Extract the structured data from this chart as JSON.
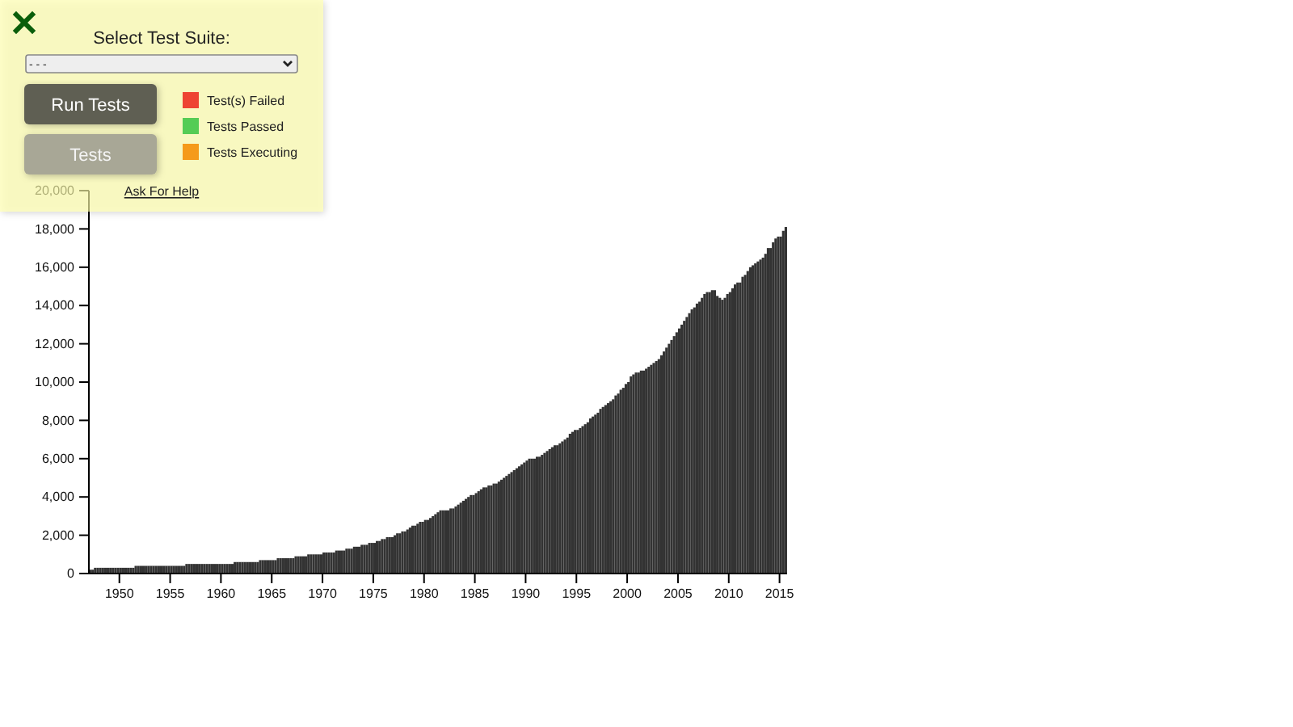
{
  "chart_data": {
    "type": "bar",
    "color": "#333333",
    "annotations": [
      "Select Test Suite:",
      "- - -",
      "Run Tests",
      "Tests",
      "Test(s) Failed",
      "Tests Passed",
      "Tests Executing",
      "Ask For Help"
    ],
    "xlim": [
      "1947-01",
      "2015-10"
    ],
    "xticks": [
      "1950",
      "1955",
      "1960",
      "1965",
      "1970",
      "1975",
      "1980",
      "1985",
      "1990",
      "1995",
      "2000",
      "2005",
      "2010",
      "2015"
    ],
    "ylim": [
      0,
      20000
    ],
    "yticks": [
      0,
      {
        "value": 2000,
        "label": "2,000"
      },
      {
        "value": 4000,
        "label": "4,000"
      },
      {
        "value": 6000,
        "label": "6,000"
      },
      {
        "value": 8000,
        "label": "8,000"
      },
      {
        "value": 10000,
        "label": "10,000"
      },
      {
        "value": 12000,
        "label": "12,000"
      },
      {
        "value": 14000,
        "label": "14,000"
      },
      {
        "value": 16000,
        "label": "16,000"
      },
      {
        "value": 18000,
        "label": "18,000"
      },
      {
        "value": 20000,
        "label": "20,000"
      }
    ],
    "x": [
      "1947-01",
      "1947-04",
      "1947-07",
      "1947-10",
      "1948-01",
      "1948-04",
      "1948-07",
      "1948-10",
      "1949-01",
      "1949-04",
      "1949-07",
      "1949-10",
      "1950-01",
      "1950-04",
      "1950-07",
      "1950-10",
      "1951-01",
      "1951-04",
      "1951-07",
      "1951-10",
      "1952-01",
      "1952-04",
      "1952-07",
      "1952-10",
      "1953-01",
      "1953-04",
      "1953-07",
      "1953-10",
      "1954-01",
      "1954-04",
      "1954-07",
      "1954-10",
      "1955-01",
      "1955-04",
      "1955-07",
      "1955-10",
      "1956-01",
      "1956-04",
      "1956-07",
      "1956-10",
      "1957-01",
      "1957-04",
      "1957-07",
      "1957-10",
      "1958-01",
      "1958-04",
      "1958-07",
      "1958-10",
      "1959-01",
      "1959-04",
      "1959-07",
      "1959-10",
      "1960-01",
      "1960-04",
      "1960-07",
      "1960-10",
      "1961-01",
      "1961-04",
      "1961-07",
      "1961-10",
      "1962-01",
      "1962-04",
      "1962-07",
      "1962-10",
      "1963-01",
      "1963-04",
      "1963-07",
      "1963-10",
      "1964-01",
      "1964-04",
      "1964-07",
      "1964-10",
      "1965-01",
      "1965-04",
      "1965-07",
      "1965-10",
      "1966-01",
      "1966-04",
      "1966-07",
      "1966-10",
      "1967-01",
      "1967-04",
      "1967-07",
      "1967-10",
      "1968-01",
      "1968-04",
      "1968-07",
      "1968-10",
      "1969-01",
      "1969-04",
      "1969-07",
      "1969-10",
      "1970-01",
      "1970-04",
      "1970-07",
      "1970-10",
      "1971-01",
      "1971-04",
      "1971-07",
      "1971-10",
      "1972-01",
      "1972-04",
      "1972-07",
      "1972-10",
      "1973-01",
      "1973-04",
      "1973-07",
      "1973-10",
      "1974-01",
      "1974-04",
      "1974-07",
      "1974-10",
      "1975-01",
      "1975-04",
      "1975-07",
      "1975-10",
      "1976-01",
      "1976-04",
      "1976-07",
      "1976-10",
      "1977-01",
      "1977-04",
      "1977-07",
      "1977-10",
      "1978-01",
      "1978-04",
      "1978-07",
      "1978-10",
      "1979-01",
      "1979-04",
      "1979-07",
      "1979-10",
      "1980-01",
      "1980-04",
      "1980-07",
      "1980-10",
      "1981-01",
      "1981-04",
      "1981-07",
      "1981-10",
      "1982-01",
      "1982-04",
      "1982-07",
      "1982-10",
      "1983-01",
      "1983-04",
      "1983-07",
      "1983-10",
      "1984-01",
      "1984-04",
      "1984-07",
      "1984-10",
      "1985-01",
      "1985-04",
      "1985-07",
      "1985-10",
      "1986-01",
      "1986-04",
      "1986-07",
      "1986-10",
      "1987-01",
      "1987-04",
      "1987-07",
      "1987-10",
      "1988-01",
      "1988-04",
      "1988-07",
      "1988-10",
      "1989-01",
      "1989-04",
      "1989-07",
      "1989-10",
      "1990-01",
      "1990-04",
      "1990-07",
      "1990-10",
      "1991-01",
      "1991-04",
      "1991-07",
      "1991-10",
      "1992-01",
      "1992-04",
      "1992-07",
      "1992-10",
      "1993-01",
      "1993-04",
      "1993-07",
      "1993-10",
      "1994-01",
      "1994-04",
      "1994-07",
      "1994-10",
      "1995-01",
      "1995-04",
      "1995-07",
      "1995-10",
      "1996-01",
      "1996-04",
      "1996-07",
      "1996-10",
      "1997-01",
      "1997-04",
      "1997-07",
      "1997-10",
      "1998-01",
      "1998-04",
      "1998-07",
      "1998-10",
      "1999-01",
      "1999-04",
      "1999-07",
      "1999-10",
      "2000-01",
      "2000-04",
      "2000-07",
      "2000-10",
      "2001-01",
      "2001-04",
      "2001-07",
      "2001-10",
      "2002-01",
      "2002-04",
      "2002-07",
      "2002-10",
      "2003-01",
      "2003-04",
      "2003-07",
      "2003-10",
      "2004-01",
      "2004-04",
      "2004-07",
      "2004-10",
      "2005-01",
      "2005-04",
      "2005-07",
      "2005-10",
      "2006-01",
      "2006-04",
      "2006-07",
      "2006-10",
      "2007-01",
      "2007-04",
      "2007-07",
      "2007-10",
      "2008-01",
      "2008-04",
      "2008-07",
      "2008-10",
      "2009-01",
      "2009-04",
      "2009-07",
      "2009-10",
      "2010-01",
      "2010-04",
      "2010-07",
      "2010-10",
      "2011-01",
      "2011-04",
      "2011-07",
      "2011-10",
      "2012-01",
      "2012-04",
      "2012-07",
      "2012-10",
      "2013-01",
      "2013-04",
      "2013-07",
      "2013-10",
      "2014-01",
      "2014-04",
      "2014-07",
      "2014-10",
      "2015-01",
      "2015-04",
      "2015-07"
    ],
    "values": [
      200,
      200,
      300,
      300,
      300,
      300,
      300,
      300,
      300,
      300,
      300,
      300,
      300,
      300,
      300,
      300,
      300,
      300,
      400,
      400,
      400,
      400,
      400,
      400,
      400,
      400,
      400,
      400,
      400,
      400,
      400,
      400,
      400,
      400,
      400,
      400,
      400,
      400,
      500,
      500,
      500,
      500,
      500,
      500,
      500,
      500,
      500,
      500,
      500,
      500,
      500,
      500,
      500,
      500,
      500,
      500,
      500,
      600,
      600,
      600,
      600,
      600,
      600,
      600,
      600,
      600,
      600,
      700,
      700,
      700,
      700,
      700,
      700,
      700,
      800,
      800,
      800,
      800,
      800,
      800,
      800,
      900,
      900,
      900,
      900,
      900,
      1000,
      1000,
      1000,
      1000,
      1000,
      1000,
      1100,
      1100,
      1100,
      1100,
      1100,
      1200,
      1200,
      1200,
      1200,
      1300,
      1300,
      1300,
      1400,
      1400,
      1400,
      1500,
      1500,
      1500,
      1600,
      1600,
      1600,
      1700,
      1700,
      1800,
      1800,
      1900,
      1900,
      1900,
      2000,
      2100,
      2100,
      2200,
      2200,
      2300,
      2400,
      2500,
      2500,
      2600,
      2700,
      2700,
      2800,
      2800,
      2900,
      3000,
      3100,
      3200,
      3300,
      3300,
      3300,
      3300,
      3400,
      3400,
      3500,
      3600,
      3700,
      3800,
      3900,
      4000,
      4100,
      4100,
      4200,
      4300,
      4400,
      4500,
      4500,
      4600,
      4600,
      4700,
      4700,
      4800,
      4900,
      5000,
      5100,
      5200,
      5300,
      5400,
      5500,
      5600,
      5700,
      5800,
      5900,
      6000,
      6000,
      6000,
      6100,
      6100,
      6200,
      6300,
      6400,
      6500,
      6600,
      6700,
      6700,
      6800,
      6900,
      7000,
      7100,
      7300,
      7400,
      7500,
      7500,
      7600,
      7700,
      7800,
      7900,
      8100,
      8200,
      8300,
      8400,
      8600,
      8700,
      8800,
      8900,
      9000,
      9100,
      9300,
      9400,
      9600,
      9700,
      9900,
      10000,
      10300,
      10400,
      10500,
      10500,
      10600,
      10600,
      10700,
      10800,
      10900,
      11000,
      11100,
      11200,
      11400,
      11600,
      11800,
      12000,
      12200,
      12400,
      12600,
      12800,
      13000,
      13200,
      13400,
      13600,
      13800,
      13900,
      14100,
      14200,
      14400,
      14600,
      14700,
      14700,
      14800,
      14800,
      14500,
      14400,
      14300,
      14400,
      14600,
      14700,
      14900,
      15100,
      15200,
      15200,
      15500,
      15600,
      15800,
      16000,
      16100,
      16200,
      16300,
      16400,
      16500,
      16700,
      17000,
      17000,
      17300,
      17500,
      17600,
      17600,
      17900,
      18100
    ]
  }
}
